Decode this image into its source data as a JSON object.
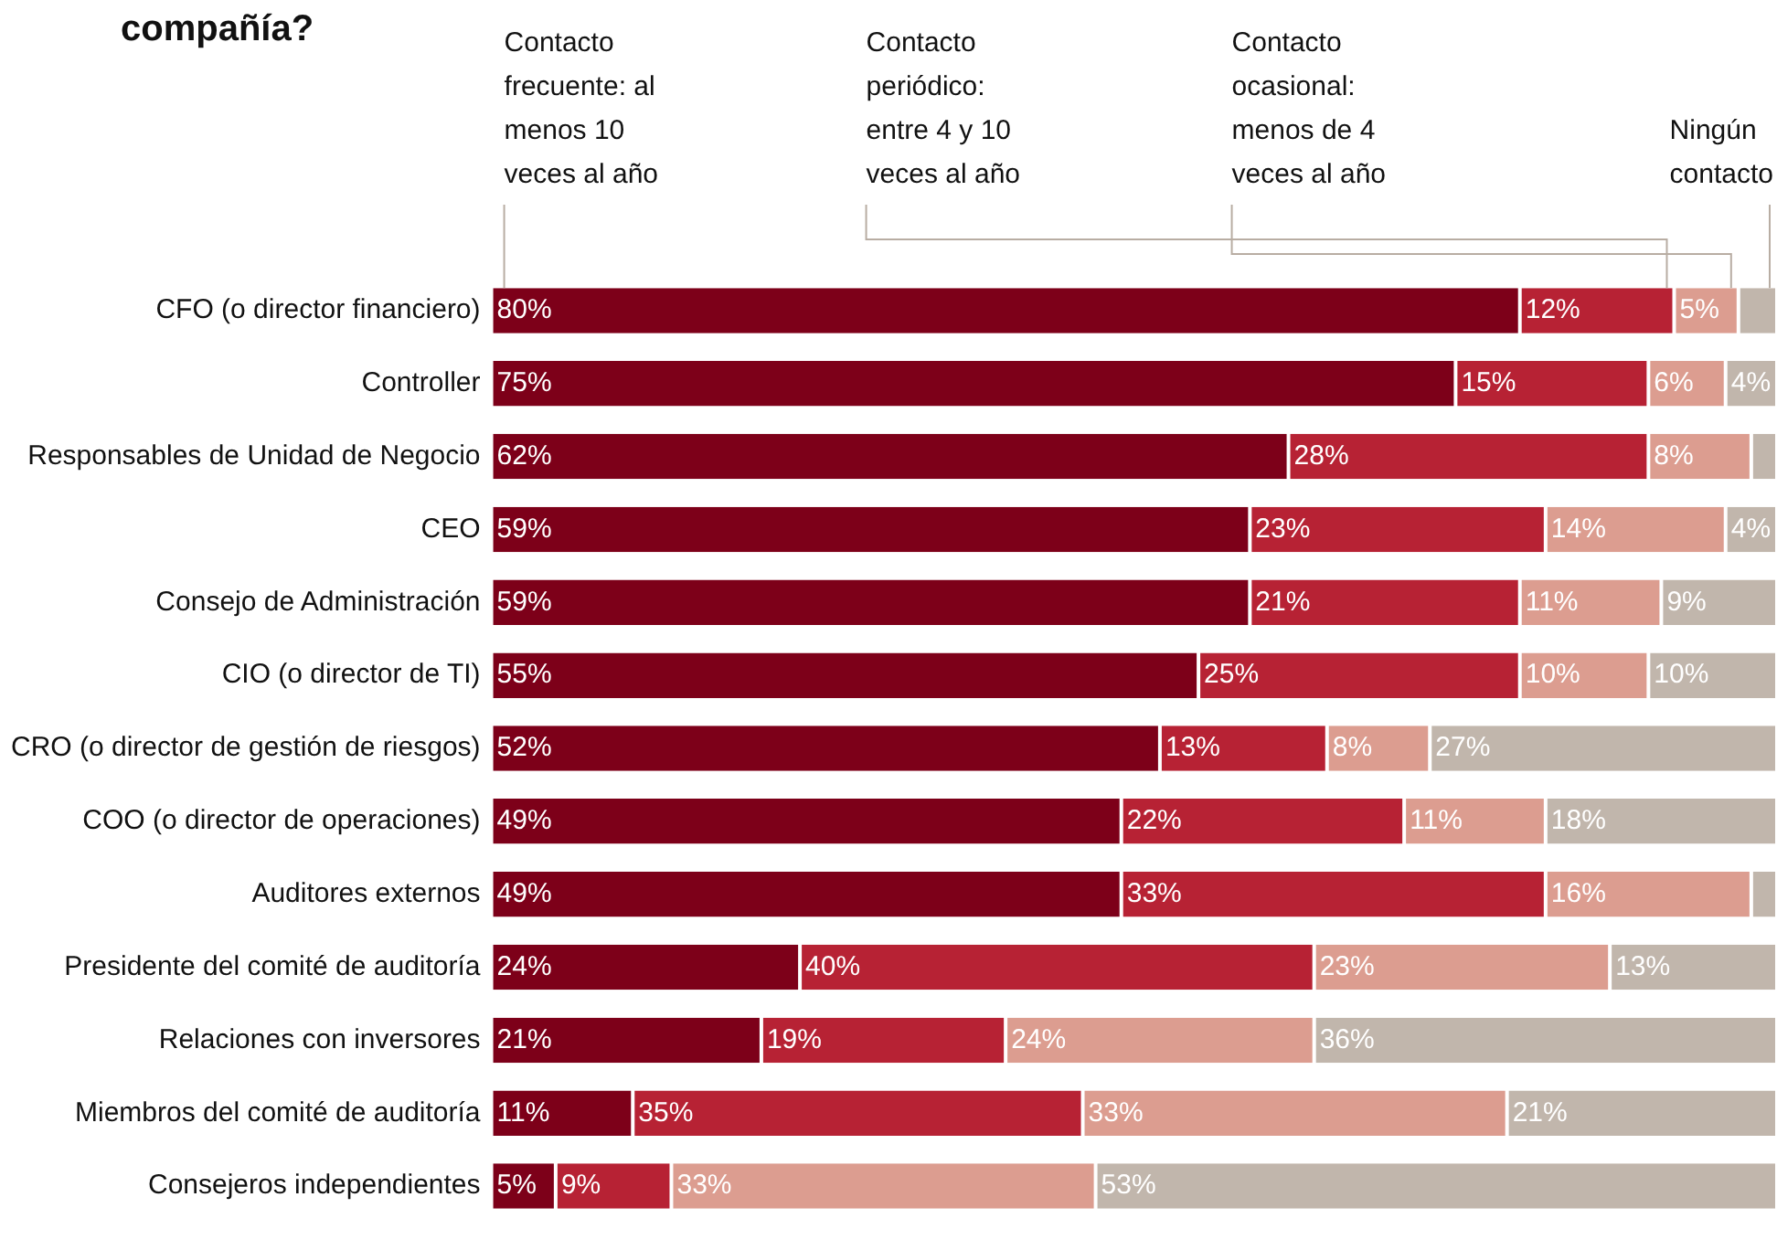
{
  "chart_data": {
    "type": "bar",
    "orientation": "horizontal",
    "stacked": true,
    "title": "compañía?",
    "categories": [
      "CFO (o director financiero)",
      "Controller",
      "Responsables de Unidad de Negocio",
      "CEO",
      "Consejo de Administración",
      "CIO (o director de TI)",
      "CRO (o director de gestión de riesgos)",
      "COO (o director de operaciones)",
      "Auditores externos",
      "Presidente del comité de auditoría",
      "Relaciones con inversores",
      "Miembros del comité de auditoría",
      "Consejeros independientes"
    ],
    "xlim": [
      0,
      100
    ],
    "tick_labels": false,
    "legend": "top",
    "series": [
      {
        "name": "Contacto frecuente: al menos 10 veces al año",
        "color": "#7d0019",
        "values": [
          80,
          75,
          62,
          59,
          59,
          55,
          52,
          49,
          49,
          24,
          21,
          11,
          5
        ],
        "value_labels": [
          "80%",
          "75%",
          "62%",
          "59%",
          "59%",
          "55%",
          "52%",
          "49%",
          "49%",
          "24%",
          "21%",
          "11%",
          "5%"
        ]
      },
      {
        "name": "Contacto periódico: entre 4 y 10 veces al año",
        "color": "#b72234",
        "values": [
          12,
          15,
          28,
          23,
          21,
          25,
          13,
          22,
          33,
          40,
          19,
          35,
          9
        ],
        "value_labels": [
          "12%",
          "15%",
          "28%",
          "23%",
          "21%",
          "25%",
          "13%",
          "22%",
          "33%",
          "40%",
          "19%",
          "35%",
          "9%"
        ]
      },
      {
        "name": "Contacto ocasional: menos de 4 veces al año",
        "color": "#dc9d90",
        "values": [
          5,
          6,
          8,
          14,
          11,
          10,
          8,
          11,
          16,
          23,
          24,
          33,
          33
        ],
        "value_labels": [
          "5%",
          "6%",
          "8%",
          "14%",
          "11%",
          "10%",
          "8%",
          "11%",
          "16%",
          "23%",
          "24%",
          "33%",
          "33%"
        ]
      },
      {
        "name": "Ningún contacto",
        "color": "#c1b6ac",
        "values": [
          3,
          4,
          2,
          4,
          9,
          10,
          27,
          18,
          2,
          13,
          36,
          21,
          53
        ],
        "value_labels": [
          null,
          "4%",
          null,
          "4%",
          "9%",
          "10%",
          "27%",
          "18%",
          null,
          "13%",
          "36%",
          "21%",
          "53%"
        ]
      }
    ]
  }
}
